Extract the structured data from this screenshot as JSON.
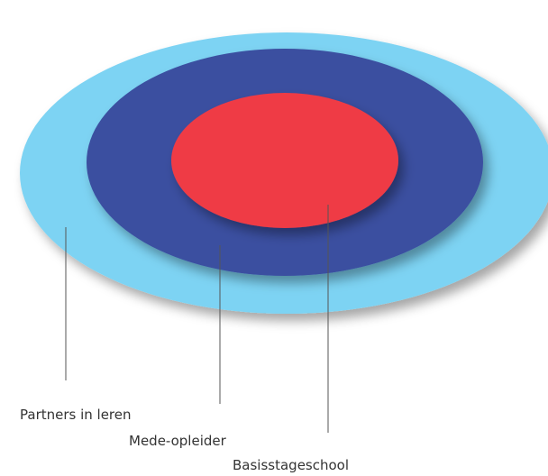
{
  "diagram": {
    "rings": [
      {
        "name": "outer",
        "label": "Partners in leren",
        "color": "#7dd3f3"
      },
      {
        "name": "middle",
        "label": "Mede-opleider",
        "color": "#3b4fa0"
      },
      {
        "name": "inner",
        "label": "Basisstageschool",
        "color": "#ef3b44"
      }
    ],
    "leader_color": "#555555"
  }
}
